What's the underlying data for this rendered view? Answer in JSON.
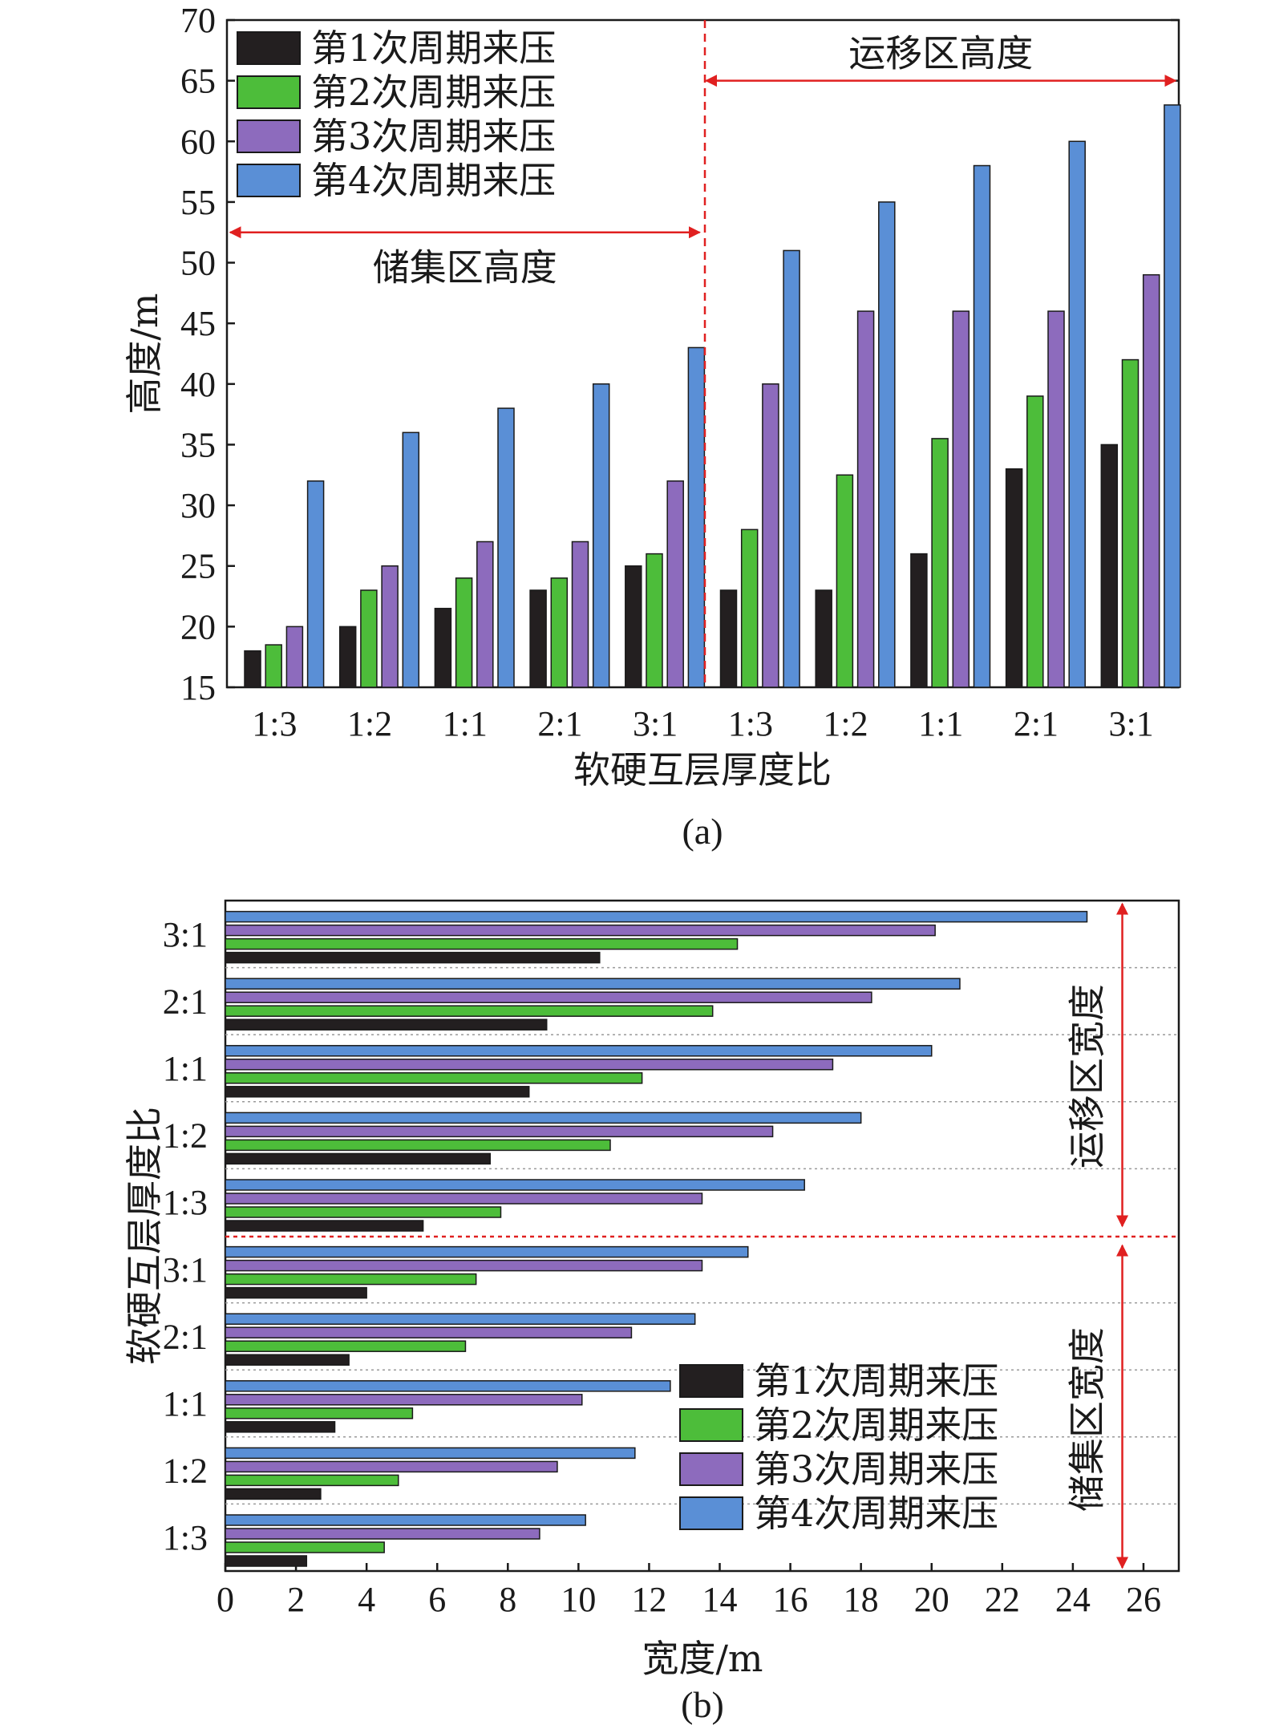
{
  "chart_data": [
    {
      "type": "bar",
      "orientation": "vertical",
      "caption": "(a)",
      "xlabel": "软硬互层厚度比",
      "ylabel": "高度/m",
      "ylim": [
        15,
        70
      ],
      "yticks": [
        15,
        20,
        25,
        30,
        35,
        40,
        45,
        50,
        55,
        60,
        65,
        70
      ],
      "categories": [
        "1:3",
        "1:2",
        "1:1",
        "2:1",
        "3:1",
        "1:3",
        "1:2",
        "1:1",
        "2:1",
        "3:1"
      ],
      "series": [
        {
          "name": "第1次周期来压",
          "color": "#231f20",
          "values": [
            18,
            20,
            21.5,
            23,
            25,
            23,
            23,
            26,
            33,
            35
          ]
        },
        {
          "name": "第2次周期来压",
          "color": "#4dbd3a",
          "values": [
            18.5,
            23,
            24,
            24,
            26,
            28,
            32.5,
            35.5,
            39,
            42
          ]
        },
        {
          "name": "第3次周期来压",
          "color": "#8d6bbd",
          "values": [
            20,
            25,
            27,
            27,
            32,
            40,
            46,
            46,
            46,
            49
          ]
        },
        {
          "name": "第4次周期来压",
          "color": "#5a8fd6",
          "values": [
            32,
            36,
            38,
            40,
            43,
            51,
            55,
            58,
            60,
            63
          ]
        }
      ],
      "legend_position": "top-left",
      "grid": false,
      "annotations": [
        {
          "text": "储集区高度",
          "arrow_from_x": 0,
          "arrow_to_x": 5,
          "at_y": 52.5
        },
        {
          "text": "运移区高度",
          "arrow_from_x": 5,
          "arrow_to_x": 10,
          "at_y": 65
        }
      ]
    },
    {
      "type": "bar",
      "orientation": "horizontal",
      "caption": "(b)",
      "xlabel": "宽度/m",
      "ylabel": "软硬互层厚度比",
      "xlim": [
        0,
        27
      ],
      "xticks": [
        0,
        2,
        4,
        6,
        8,
        10,
        12,
        14,
        16,
        18,
        20,
        22,
        24,
        26
      ],
      "categories": [
        "1:3",
        "1:2",
        "1:1",
        "2:1",
        "3:1",
        "1:3",
        "1:2",
        "1:1",
        "2:1",
        "3:1"
      ],
      "series": [
        {
          "name": "第1次周期来压",
          "color": "#231f20",
          "values": [
            2.3,
            2.7,
            3.1,
            3.5,
            4.0,
            5.6,
            7.5,
            8.6,
            9.1,
            10.6
          ]
        },
        {
          "name": "第2次周期来压",
          "color": "#4dbd3a",
          "values": [
            4.5,
            4.9,
            5.3,
            6.8,
            7.1,
            7.8,
            10.9,
            11.8,
            13.8,
            14.5
          ]
        },
        {
          "name": "第3次周期来压",
          "color": "#8d6bbd",
          "values": [
            8.9,
            9.4,
            10.1,
            11.5,
            13.5,
            13.5,
            15.5,
            17.2,
            18.3,
            20.1
          ]
        },
        {
          "name": "第4次周期来压",
          "color": "#5a8fd6",
          "values": [
            10.2,
            11.6,
            12.6,
            13.3,
            14.8,
            16.4,
            18.0,
            20.0,
            20.8,
            24.4
          ]
        }
      ],
      "legend_position": "bottom-right",
      "grid": "dotted horizontal separators",
      "annotations": [
        {
          "text": "储集区宽度",
          "arrow_from_cat": 0,
          "arrow_to_cat": 5,
          "at_x": 25.4
        },
        {
          "text": "运移区宽度",
          "arrow_from_cat": 5,
          "arrow_to_cat": 10,
          "at_x": 25.4
        }
      ]
    }
  ]
}
